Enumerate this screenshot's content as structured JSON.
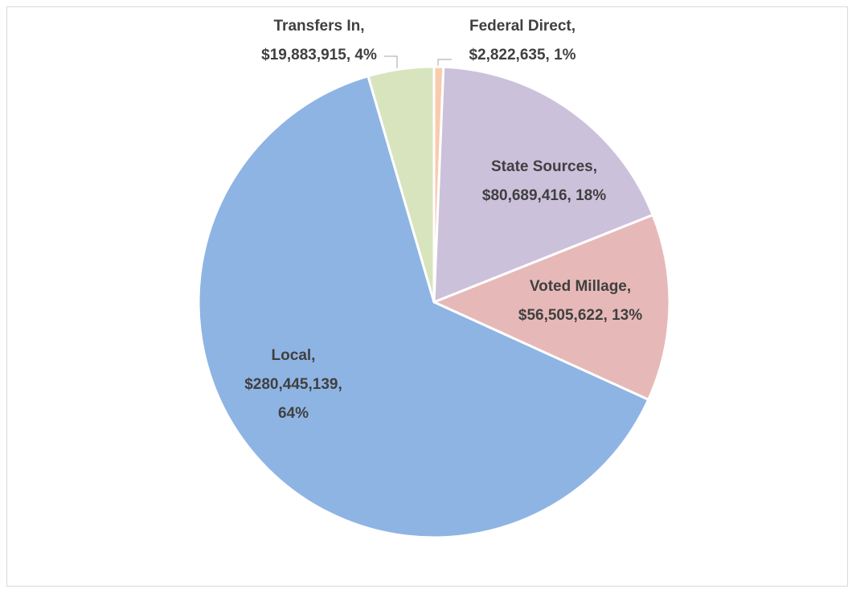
{
  "chart_data": {
    "type": "pie",
    "categories": [
      "Federal Direct,",
      "State Sources,",
      "Voted Millage,",
      "Local,",
      "Transfers In,"
    ],
    "values": [
      2822635,
      80689416,
      56505622,
      280445139,
      19883915
    ],
    "value_labels": [
      [
        "$2,822,635, 1%"
      ],
      [
        "$80,689,416, 18%"
      ],
      [
        "$56,505,622, 13%"
      ],
      [
        "$280,445,139,",
        "64%"
      ],
      [
        "$19,883,915, 4%"
      ]
    ],
    "colors": [
      "#f8cbad",
      "#ccc1da",
      "#e6b9b8",
      "#8eb4e3",
      "#d7e4bd"
    ]
  }
}
